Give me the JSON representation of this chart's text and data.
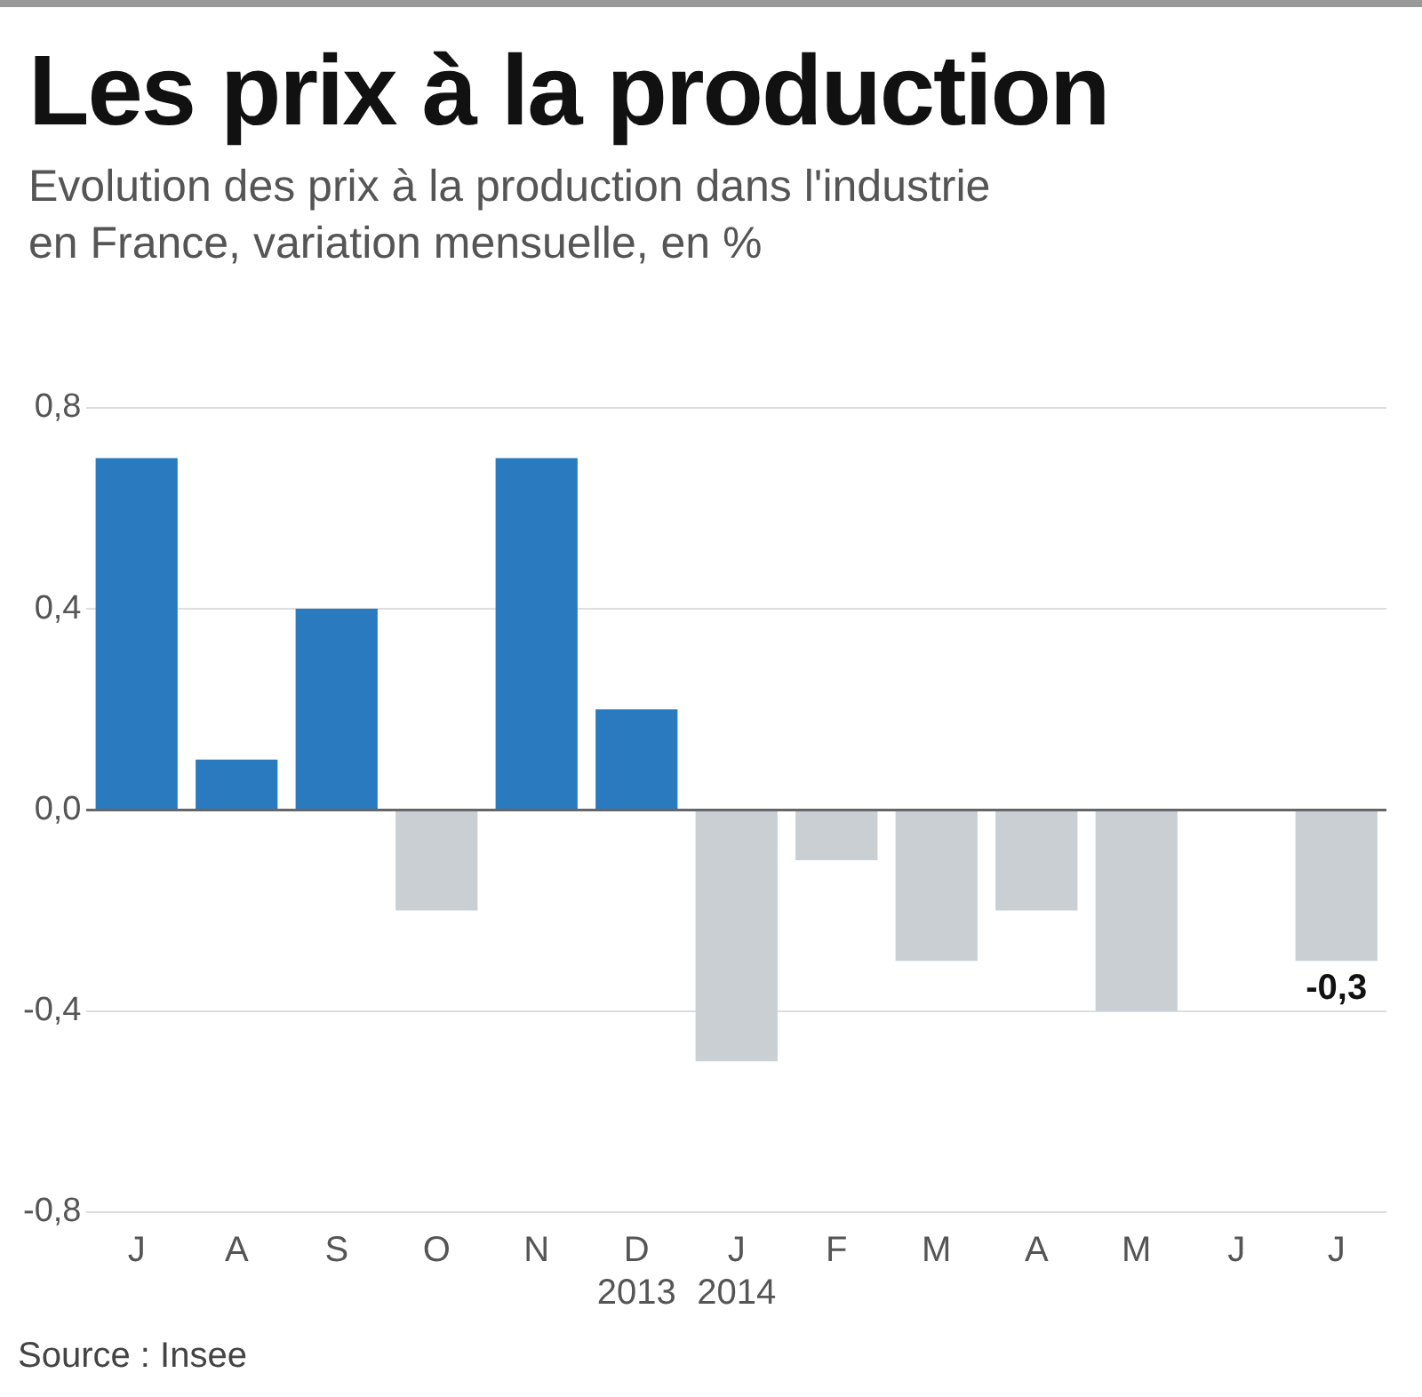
{
  "chart_data": {
    "type": "bar",
    "title": "Les prix à la production",
    "subtitle": "Evolution des prix à la production dans l'industrie\nen France, variation mensuelle, en %",
    "categories": [
      "J",
      "A",
      "S",
      "O",
      "N",
      "D\n2013",
      "J\n2014",
      "F",
      "M",
      "A",
      "M",
      "J",
      "J"
    ],
    "values": [
      0.7,
      0.1,
      0.4,
      -0.2,
      0.7,
      0.2,
      -0.5,
      -0.1,
      -0.3,
      -0.2,
      -0.4,
      0,
      -0.3
    ],
    "colors": [
      "#2a7abf",
      "#2a7abf",
      "#2a7abf",
      "#c9cfd3",
      "#2a7abf",
      "#2a7abf",
      "#c9cfd3",
      "#c9cfd3",
      "#c9cfd3",
      "#c9cfd3",
      "#c9cfd3",
      "#c9cfd3",
      "#c9cfd3"
    ],
    "value_labels": [
      null,
      null,
      null,
      null,
      null,
      null,
      null,
      null,
      null,
      null,
      null,
      null,
      "-0,3"
    ],
    "ylim": [
      -0.8,
      0.8
    ],
    "yticks": [
      {
        "value": -0.8,
        "label": "-0,8"
      },
      {
        "value": -0.4,
        "label": "-0,4"
      },
      {
        "value": 0,
        "label": "0,0"
      },
      {
        "value": 0.4,
        "label": "0,4"
      },
      {
        "value": 0.8,
        "label": "0,8"
      }
    ],
    "grid": "y",
    "legend": false,
    "annotations": [
      "Source : Insee"
    ]
  }
}
